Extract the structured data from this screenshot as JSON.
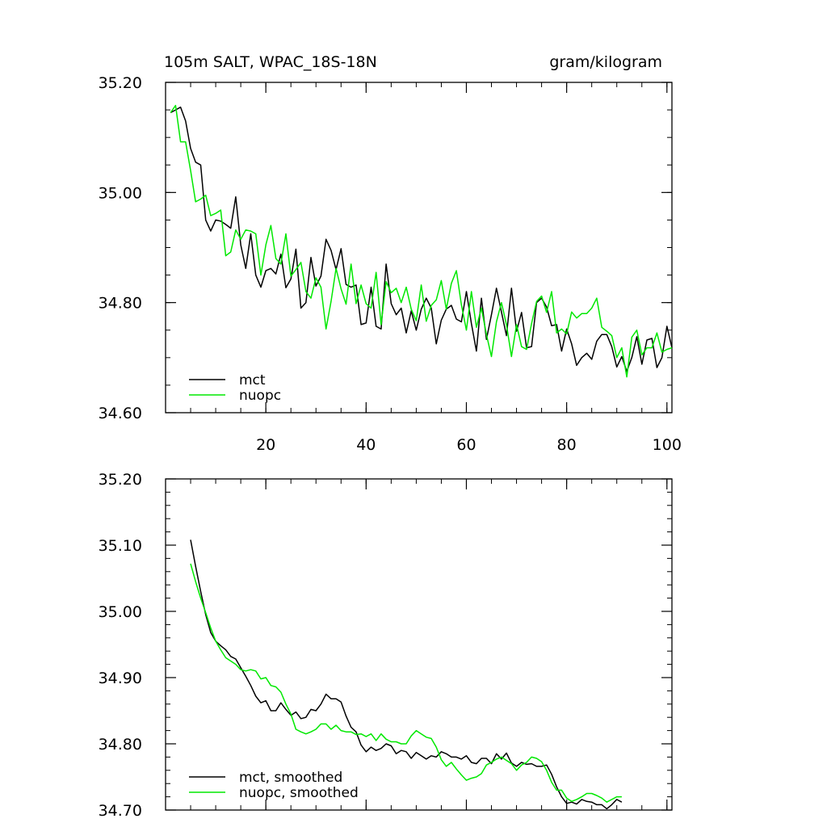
{
  "chart_data": [
    {
      "type": "line",
      "title_left": "105m SALT, WPAC_18S-18N",
      "title_right": "gram/kilogram",
      "xlim": [
        0,
        101
      ],
      "ylim": [
        34.6,
        35.2
      ],
      "xticks": [
        20,
        40,
        60,
        80,
        100
      ],
      "xtick_labels": [
        "20",
        "40",
        "60",
        "80",
        "100"
      ],
      "yticks": [
        34.6,
        34.8,
        35.0,
        35.2
      ],
      "ytick_labels": [
        "34.60",
        "34.80",
        "35.00",
        "35.20"
      ],
      "legend": [
        "mct",
        "nuopc"
      ],
      "series": [
        {
          "name": "mct",
          "color": "#000000",
          "x0": 1,
          "values": [
            35.145,
            35.15,
            35.155,
            35.13,
            35.08,
            35.055,
            35.05,
            34.95,
            34.93,
            34.95,
            34.948,
            34.942,
            34.935,
            34.992,
            34.905,
            34.862,
            34.925,
            34.85,
            34.828,
            34.858,
            34.862,
            34.852,
            34.888,
            34.827,
            34.843,
            34.897,
            34.79,
            34.8,
            34.882,
            34.83,
            34.848,
            34.915,
            34.895,
            34.86,
            34.898,
            34.833,
            34.828,
            34.832,
            34.76,
            34.763,
            34.828,
            34.757,
            34.752,
            34.87,
            34.798,
            34.778,
            34.79,
            34.745,
            34.785,
            34.75,
            34.788,
            34.808,
            34.79,
            34.725,
            34.768,
            34.788,
            34.795,
            34.77,
            34.765,
            34.82,
            34.762,
            34.712,
            34.808,
            34.733,
            34.778,
            34.826,
            34.783,
            34.74,
            34.826,
            34.748,
            34.782,
            34.718,
            34.72,
            34.8,
            34.808,
            34.792,
            34.758,
            34.76,
            34.712,
            34.752,
            34.725,
            34.686,
            34.7,
            34.708,
            34.697,
            34.73,
            34.742,
            34.742,
            34.72,
            34.683,
            34.702,
            34.675,
            34.7,
            34.738,
            34.688,
            34.732,
            34.735,
            34.682,
            34.7,
            34.757,
            34.718
          ]
        },
        {
          "name": "nuopc",
          "color": "#00e800",
          "x0": 1,
          "values": [
            35.145,
            35.158,
            35.092,
            35.092,
            35.04,
            34.983,
            34.988,
            34.995,
            34.958,
            34.962,
            34.968,
            34.885,
            34.892,
            34.932,
            34.915,
            34.932,
            34.93,
            34.925,
            34.85,
            34.905,
            34.94,
            34.88,
            34.87,
            34.925,
            34.848,
            34.86,
            34.873,
            34.82,
            34.808,
            34.845,
            34.828,
            34.752,
            34.802,
            34.862,
            34.825,
            34.797,
            34.87,
            34.798,
            34.832,
            34.798,
            34.79,
            34.855,
            34.76,
            34.838,
            34.818,
            34.826,
            34.8,
            34.828,
            34.788,
            34.767,
            34.832,
            34.766,
            34.795,
            34.805,
            34.84,
            34.788,
            34.835,
            34.858,
            34.796,
            34.75,
            34.82,
            34.755,
            34.79,
            34.742,
            34.702,
            34.765,
            34.8,
            34.76,
            34.702,
            34.76,
            34.72,
            34.715,
            34.762,
            34.802,
            34.812,
            34.782,
            34.82,
            34.745,
            34.752,
            34.743,
            34.783,
            34.772,
            34.78,
            34.78,
            34.79,
            34.808,
            34.755,
            34.748,
            34.74,
            34.7,
            34.718,
            34.665,
            34.737,
            34.75,
            34.705,
            34.718,
            34.718,
            34.745,
            34.71,
            34.715,
            34.718
          ]
        }
      ]
    },
    {
      "type": "line",
      "xlim": [
        0,
        101
      ],
      "ylim": [
        34.7,
        35.2
      ],
      "xticks": [
        20,
        40,
        60,
        80,
        100
      ],
      "yticks": [
        34.7,
        34.8,
        34.9,
        35.0,
        35.1,
        35.2
      ],
      "ytick_labels": [
        "34.70",
        "34.80",
        "34.90",
        "35.00",
        "35.10",
        "35.20"
      ],
      "legend": [
        "mct, smoothed",
        "nuopc, smoothed"
      ],
      "series": [
        {
          "name": "mct, smoothed",
          "color": "#000000",
          "x0": 5,
          "values": [
            35.108,
            35.068,
            35.03,
            34.995,
            34.968,
            34.955,
            34.948,
            34.942,
            34.932,
            34.928,
            34.915,
            34.902,
            34.888,
            34.872,
            34.862,
            34.865,
            34.85,
            34.85,
            34.862,
            34.852,
            34.843,
            34.848,
            34.838,
            34.84,
            34.852,
            34.85,
            34.86,
            34.875,
            34.868,
            34.868,
            34.863,
            34.842,
            34.825,
            34.818,
            34.798,
            34.788,
            34.795,
            34.79,
            34.793,
            34.8,
            34.797,
            34.785,
            34.79,
            34.788,
            34.778,
            34.787,
            34.782,
            34.777,
            34.782,
            34.78,
            34.788,
            34.785,
            34.78,
            34.78,
            34.777,
            34.782,
            34.772,
            34.77,
            34.778,
            34.778,
            34.77,
            34.785,
            34.777,
            34.786,
            34.771,
            34.766,
            34.772,
            34.769,
            34.77,
            34.766,
            34.766,
            34.768,
            34.754,
            34.735,
            34.72,
            34.71,
            34.712,
            34.709,
            34.716,
            34.713,
            34.712,
            34.708,
            34.708,
            34.702,
            34.708,
            34.716,
            34.712
          ]
        },
        {
          "name": "nuopc, smoothed",
          "color": "#00e800",
          "x0": 5,
          "values": [
            35.072,
            35.045,
            35.02,
            34.998,
            34.975,
            34.955,
            34.942,
            34.93,
            34.925,
            34.92,
            34.912,
            34.91,
            34.912,
            34.91,
            34.898,
            34.9,
            34.888,
            34.886,
            34.878,
            34.86,
            34.845,
            34.822,
            34.818,
            34.815,
            34.818,
            34.822,
            34.83,
            34.83,
            34.822,
            34.828,
            34.82,
            34.818,
            34.818,
            34.814,
            34.815,
            34.811,
            34.815,
            34.805,
            34.815,
            34.807,
            34.803,
            34.803,
            34.8,
            34.8,
            34.812,
            34.82,
            34.815,
            34.81,
            34.808,
            34.795,
            34.776,
            34.766,
            34.772,
            34.762,
            34.753,
            34.745,
            34.748,
            34.75,
            34.755,
            34.768,
            34.772,
            34.777,
            34.78,
            34.775,
            34.77,
            34.76,
            34.768,
            34.772,
            34.78,
            34.778,
            34.773,
            34.76,
            34.742,
            34.73,
            34.73,
            34.718,
            34.713,
            34.716,
            34.72,
            34.725,
            34.725,
            34.722,
            34.718,
            34.712,
            34.716,
            34.72,
            34.72
          ]
        }
      ]
    }
  ]
}
